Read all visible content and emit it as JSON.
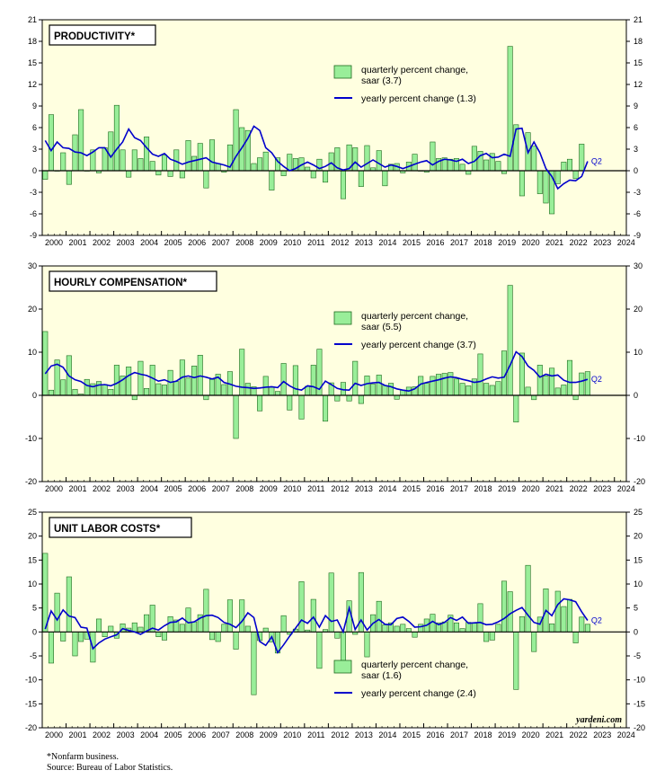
{
  "footnote": "*Nonfarm business.",
  "source": "Source: Bureau of Labor Statistics.",
  "watermark": "yardeni.com",
  "colors": {
    "plot_bg": "#ffffe0",
    "bar_fill": "#99ee99",
    "bar_stroke": "#1e6a1e",
    "line": "#0000cc"
  },
  "chart_data": [
    {
      "type": "bar",
      "title": "PRODUCTIVITY*",
      "ylim": [
        -9,
        21
      ],
      "yticks": [
        -9,
        -6,
        -3,
        0,
        3,
        6,
        9,
        12,
        15,
        18,
        21
      ],
      "xticks": [
        "2000",
        "2001",
        "2002",
        "2003",
        "2004",
        "2005",
        "2006",
        "2007",
        "2008",
        "2009",
        "2010",
        "2011",
        "2012",
        "2013",
        "2014",
        "2015",
        "2016",
        "2017",
        "2018",
        "2019",
        "2020",
        "2021",
        "2022",
        "2023",
        "2024"
      ],
      "legend_position": "top-right",
      "end_label": "Q2",
      "series": [
        {
          "name": "quarterly percent change, saar (3.7)",
          "kind": "bar",
          "values": [
            -1.2,
            7.8,
            0,
            2.5,
            -1.9,
            5.0,
            8.5,
            0,
            2.9,
            -0.3,
            3.2,
            5.4,
            9.1,
            2.9,
            -0.9,
            2.9,
            1.7,
            4.7,
            1.3,
            -0.6,
            2.2,
            -0.8,
            2.9,
            -1.0,
            4.2,
            2.0,
            3.8,
            -2.4,
            4.3,
            1.0,
            -0.2,
            3.6,
            8.5,
            6.0,
            5.6,
            1.0,
            1.8,
            2.6,
            -2.7,
            1.8,
            -0.7,
            2.3,
            1.7,
            1.8,
            0.5,
            -1.0,
            1.6,
            -1.6,
            2.5,
            3.2,
            -3.9,
            3.6,
            3.2,
            -2.2,
            3.5,
            0.4,
            2.8,
            -2.1,
            0.9,
            1.0,
            -0.3,
            1.2,
            2.3,
            0.0,
            -0.2,
            4.0,
            1.7,
            1.8,
            1.6,
            1.7,
            0.9,
            -0.5,
            3.4,
            2.7,
            1.5,
            2.4,
            1.3,
            -0.4,
            17.3,
            6.4,
            -3.5,
            5.3,
            3.4,
            -3.2,
            -4.5,
            -6.0,
            -1.8,
            1.2,
            1.6,
            -1.1,
            3.7
          ]
        },
        {
          "name": "yearly percent change (1.3)",
          "kind": "line",
          "values": [
            4.2,
            2.8,
            4.0,
            3.2,
            3.1,
            2.6,
            2.5,
            2.1,
            2.6,
            3.2,
            3.2,
            1.9,
            3.0,
            4.0,
            5.8,
            4.6,
            4.2,
            3.2,
            2.3,
            2.0,
            2.4,
            1.6,
            1.3,
            0.9,
            1.2,
            1.4,
            1.6,
            1.8,
            1.2,
            1.0,
            0.8,
            0.5,
            2.0,
            3.2,
            4.5,
            6.2,
            5.6,
            3.2,
            2.5,
            1.3,
            0.6,
            0.0,
            0.3,
            0.8,
            1.2,
            0.8,
            0.3,
            0.6,
            1.1,
            0.4,
            0.1,
            0.3,
            1.2,
            0.5,
            1.0,
            1.5,
            1.0,
            0.5,
            0.8,
            0.6,
            0.3,
            0.6,
            0.9,
            1.2,
            1.4,
            0.8,
            1.3,
            1.6,
            1.5,
            1.3,
            1.6,
            1.0,
            1.3,
            2.1,
            2.4,
            1.8,
            1.9,
            2.3,
            2.0,
            5.8,
            5.9,
            2.5,
            4.0,
            2.5,
            0.3,
            -0.8,
            -2.5,
            -1.8,
            -1.3,
            -1.4,
            -0.8,
            1.3
          ]
        }
      ]
    },
    {
      "type": "bar",
      "title": "HOURLY COMPENSATION*",
      "ylim": [
        -20,
        30
      ],
      "yticks": [
        -20,
        -10,
        0,
        10,
        20,
        30
      ],
      "xticks": [
        "2000",
        "2001",
        "2002",
        "2003",
        "2004",
        "2005",
        "2006",
        "2007",
        "2008",
        "2009",
        "2010",
        "2011",
        "2012",
        "2013",
        "2014",
        "2015",
        "2016",
        "2017",
        "2018",
        "2019",
        "2020",
        "2021",
        "2022",
        "2023",
        "2024"
      ],
      "legend_position": "top-right",
      "end_label": "Q2",
      "series": [
        {
          "name": "quarterly percent change, saar (5.5)",
          "kind": "bar",
          "values": [
            14.8,
            1.2,
            8.2,
            3.6,
            9.2,
            1.4,
            0.3,
            3.7,
            2.7,
            3.2,
            2.5,
            1.4,
            7.0,
            4.5,
            6.6,
            -1.0,
            7.9,
            1.6,
            7.0,
            2.7,
            2.4,
            5.8,
            3.2,
            8.2,
            4.0,
            6.8,
            9.3,
            -1.0,
            3.7,
            4.9,
            2.5,
            5.5,
            -10.0,
            10.7,
            2.8,
            2.0,
            -3.6,
            4.4,
            1.9,
            0.9,
            7.4,
            -3.4,
            6.9,
            -5.5,
            2.1,
            7.0,
            10.7,
            -6.0,
            2.9,
            -1.3,
            3.0,
            -1.3,
            7.9,
            -1.9,
            4.5,
            2.6,
            4.7,
            2.3,
            2.8,
            -0.9,
            1.2,
            1.9,
            2.0,
            4.4,
            2.8,
            4.4,
            4.9,
            5.1,
            5.3,
            3.8,
            2.8,
            2.2,
            3.8,
            9.6,
            2.8,
            2.3,
            3.2,
            10.3,
            25.5,
            -6.2,
            9.8,
            1.9,
            -1.0,
            7.0,
            4.5,
            6.3,
            1.7,
            2.4,
            8.1,
            -1.0,
            5.2,
            5.5
          ]
        },
        {
          "name": "yearly percent change (3.7)",
          "kind": "line",
          "values": [
            5.0,
            6.8,
            7.2,
            6.5,
            4.5,
            3.6,
            3.2,
            2.3,
            2.0,
            2.4,
            2.5,
            2.2,
            2.8,
            3.6,
            4.6,
            5.3,
            4.9,
            4.6,
            4.0,
            3.3,
            3.6,
            3.0,
            3.3,
            4.2,
            4.5,
            4.1,
            4.5,
            4.2,
            3.8,
            4.2,
            3.0,
            2.6,
            2.1,
            1.9,
            1.8,
            1.6,
            1.7,
            1.9,
            2.0,
            1.8,
            3.2,
            2.2,
            1.5,
            1.2,
            2.2,
            2.0,
            1.4,
            3.3,
            2.5,
            1.6,
            1.3,
            1.2,
            2.8,
            2.3,
            2.7,
            2.9,
            3.0,
            2.3,
            2.0,
            1.5,
            1.2,
            1.0,
            1.5,
            2.6,
            3.0,
            3.3,
            3.6,
            4.0,
            4.3,
            4.1,
            3.7,
            3.4,
            3.0,
            3.2,
            3.8,
            4.3,
            4.0,
            4.2,
            7.0,
            10.1,
            9.0,
            6.8,
            5.8,
            4.2,
            4.9,
            4.5,
            4.7,
            3.5,
            3.0,
            3.0,
            3.3,
            3.7
          ]
        }
      ]
    },
    {
      "type": "bar",
      "title": "UNIT LABOR COSTS*",
      "ylim": [
        -20,
        25
      ],
      "yticks": [
        -20,
        -15,
        -10,
        -5,
        0,
        5,
        10,
        15,
        20,
        25
      ],
      "xticks": [
        "2000",
        "2001",
        "2002",
        "2003",
        "2004",
        "2005",
        "2006",
        "2007",
        "2008",
        "2009",
        "2010",
        "2011",
        "2012",
        "2013",
        "2014",
        "2015",
        "2016",
        "2017",
        "2018",
        "2019",
        "2020",
        "2021",
        "2022",
        "2023",
        "2024"
      ],
      "legend_position": "bottom-right",
      "end_label": "Q2",
      "series": [
        {
          "name": "quarterly percent change, saar (1.6)",
          "kind": "bar",
          "values": [
            16.4,
            -6.5,
            8.1,
            -1.9,
            11.5,
            -5.0,
            -2.0,
            -1.5,
            -6.3,
            2.7,
            -1.0,
            1.2,
            -1.3,
            1.7,
            0.8,
            1.9,
            1.0,
            3.6,
            5.6,
            -1.0,
            -1.7,
            3.2,
            2.5,
            1.6,
            5.0,
            2.1,
            3.6,
            8.9,
            -1.6,
            -2.0,
            1.6,
            6.7,
            -3.6,
            6.7,
            1.2,
            -13.1,
            -1.8,
            0.8,
            -2.1,
            -4.4,
            3.4,
            -0.5,
            0.6,
            10.5,
            0.4,
            6.8,
            -7.6,
            0.5,
            12.3,
            -1.3,
            -7.5,
            6.5,
            -0.5,
            12.4,
            -5.2,
            3.6,
            6.4,
            1.5,
            1.9,
            1.2,
            1.6,
            0.7,
            -1.1,
            1.6,
            2.7,
            3.7,
            1.9,
            2.1,
            3.5,
            1.9,
            0.7,
            2.0,
            1.8,
            5.9,
            -2.0,
            -1.7,
            1.6,
            10.6,
            8.4,
            -12.0,
            3.2,
            13.9,
            -4.1,
            3.1,
            9.0,
            1.7,
            8.5,
            5.3,
            6.8,
            -2.3,
            3.1,
            1.6
          ]
        },
        {
          "name": "yearly percent change (2.4)",
          "kind": "line",
          "values": [
            0.6,
            4.4,
            2.5,
            4.6,
            3.3,
            3.0,
            1.0,
            0.8,
            -3.5,
            -2.3,
            -1.5,
            -1.0,
            -0.6,
            0.7,
            0.3,
            0.0,
            -0.5,
            0.2,
            0.8,
            0.4,
            1.3,
            2.0,
            2.1,
            2.9,
            1.9,
            2.1,
            2.9,
            3.4,
            3.5,
            3.0,
            2.0,
            1.6,
            0.9,
            2.2,
            4.0,
            3.0,
            -2.0,
            -2.8,
            -1.0,
            -4.3,
            -2.7,
            -0.9,
            0.8,
            2.5,
            1.8,
            3.1,
            1.0,
            3.4,
            2.2,
            2.5,
            0.0,
            5.0,
            0.5,
            2.5,
            0.4,
            1.8,
            2.6,
            1.6,
            1.5,
            2.8,
            3.1,
            2.2,
            1.0,
            1.1,
            1.4,
            2.2,
            1.5,
            2.0,
            3.0,
            2.4,
            3.1,
            1.8,
            1.9,
            2.0,
            1.5,
            1.6,
            2.1,
            2.8,
            3.8,
            4.5,
            5.1,
            3.5,
            2.0,
            1.6,
            4.5,
            3.4,
            5.7,
            6.9,
            6.7,
            6.3,
            4.2,
            2.4
          ]
        }
      ]
    }
  ]
}
